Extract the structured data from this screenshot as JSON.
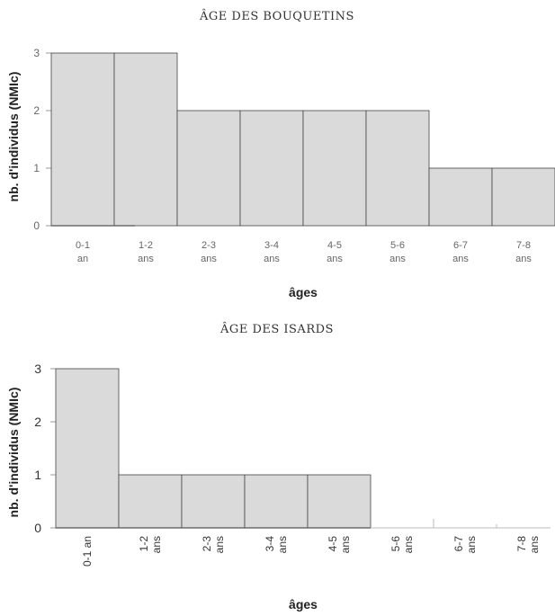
{
  "chart_data": [
    {
      "type": "bar",
      "title": "ÂGE DES BOUQUETINS",
      "xlabel": "âges",
      "ylabel": "nb. d'individus (NMIc)",
      "ylim": [
        0,
        3
      ],
      "yticks": [
        "0",
        "1",
        "2",
        "3"
      ],
      "categories": [
        [
          "0-1",
          "an"
        ],
        [
          "1-2",
          "ans"
        ],
        [
          "2-3",
          "ans"
        ],
        [
          "3-4",
          "ans"
        ],
        [
          "4-5",
          "ans"
        ],
        [
          "5-6",
          "ans"
        ],
        [
          "6-7",
          "ans"
        ],
        [
          "7-8",
          "ans"
        ]
      ],
      "values": [
        3,
        3,
        2,
        2,
        2,
        2,
        1,
        1
      ],
      "colors": {
        "bar": "#dadada",
        "edge": "#444444"
      }
    },
    {
      "type": "bar",
      "title": "ÂGE DES ISARDS",
      "xlabel": "âges",
      "ylabel": "nb. d'individus (NMIc)",
      "ylim": [
        0,
        3
      ],
      "yticks": [
        "0",
        "1",
        "2",
        "3"
      ],
      "categories": [
        [
          "0-1 an"
        ],
        [
          "1-2",
          "ans"
        ],
        [
          "2-3",
          "ans"
        ],
        [
          "3-4",
          "ans"
        ],
        [
          "4-5",
          "ans"
        ],
        [
          "5-6",
          "ans"
        ],
        [
          "6-7",
          "ans"
        ],
        [
          "7-8",
          "ans"
        ]
      ],
      "values": [
        3,
        1,
        1,
        1,
        1,
        0,
        0,
        0
      ],
      "colors": {
        "bar": "#dadada",
        "edge": "#444444"
      }
    }
  ]
}
